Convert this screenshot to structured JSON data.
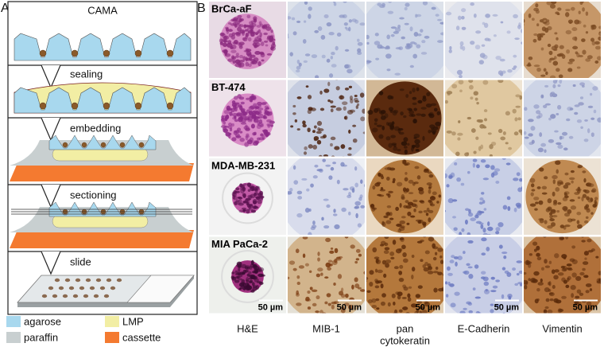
{
  "panel_a": {
    "label": "A",
    "steps": [
      "CAMA",
      "sealing",
      "embedding",
      "sectioning",
      "slide"
    ],
    "legend": [
      "agarose",
      "LMP",
      "paraffin",
      "cassette"
    ]
  },
  "panel_b": {
    "label": "B",
    "rows": [
      "BrCa-aF",
      "BT-474",
      "MDA-MB-231",
      "MIA PaCa-2"
    ],
    "columns": [
      [
        "H&E"
      ],
      [
        "MIB-1"
      ],
      [
        "pan",
        "cytokeratin"
      ],
      [
        "E-Cadherin"
      ],
      [
        "Vimentin"
      ]
    ],
    "scale_bars": [
      "50 µm",
      "50 µm",
      "50 µm",
      "50 µm",
      "50 µm"
    ]
  }
}
